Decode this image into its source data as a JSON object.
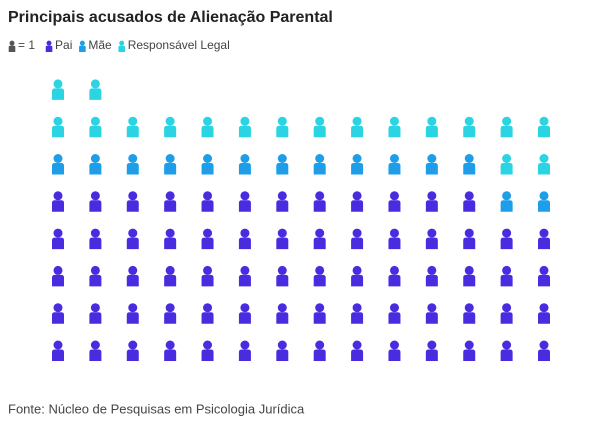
{
  "chart_data": {
    "type": "isotype",
    "title": "Principais acusados de Alienação Parental",
    "unit_label": "= 1",
    "unit_value": 1,
    "unit_color": "#555555",
    "columns": 14,
    "series": [
      {
        "name": "Pai",
        "color": "#4a2ce0",
        "value": 68
      },
      {
        "name": "Mãe",
        "color": "#1e9ee8",
        "value": 14
      },
      {
        "name": "Responsável Legal",
        "color": "#2ad4e2",
        "value": 18
      }
    ],
    "source": "Fonte: Núcleo de Pesquisas em Psicologia Jurídica"
  }
}
